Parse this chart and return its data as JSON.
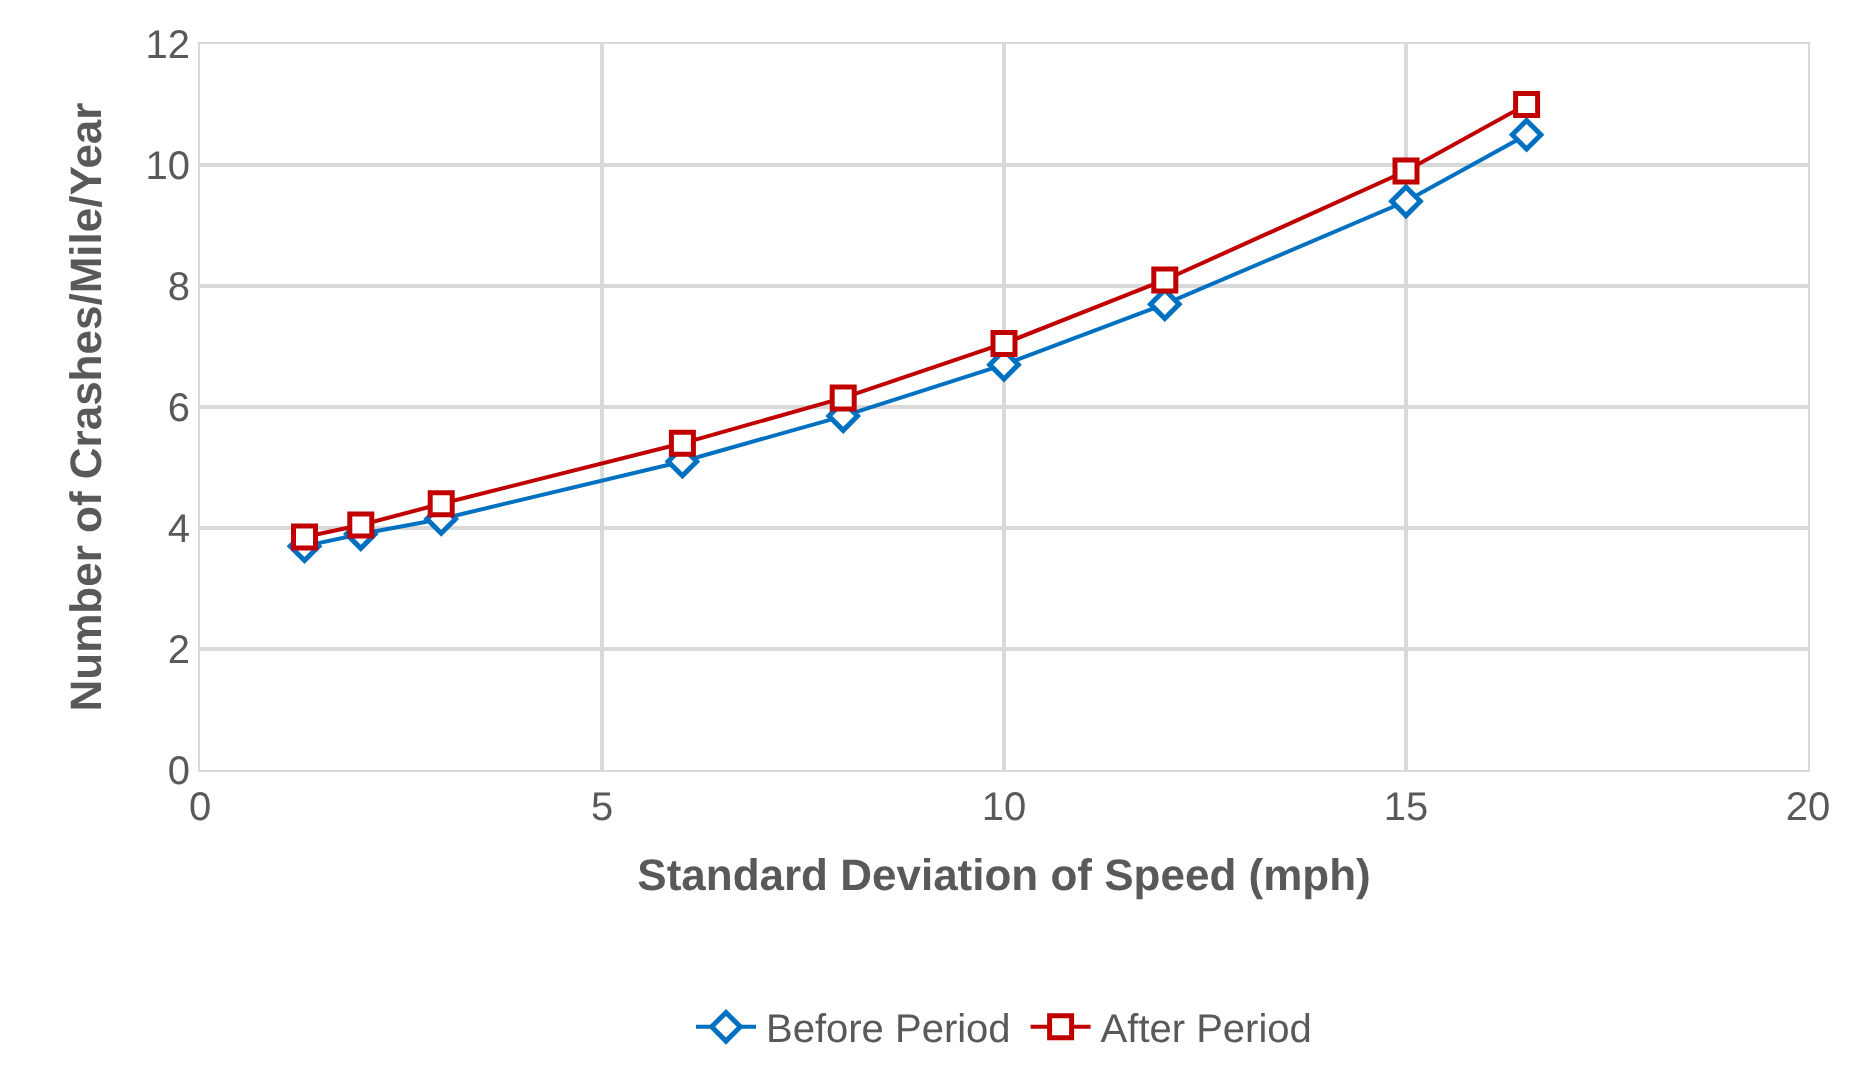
{
  "chart_data": {
    "type": "line",
    "xlabel": "Standard Deviation of Speed (mph)",
    "ylabel": "Number of Crashes/Mile/Year",
    "x": [
      1.3,
      2,
      3,
      6,
      8,
      10,
      12,
      15,
      16.5
    ],
    "series": [
      {
        "name": "Before Period",
        "color": "#0070c0",
        "marker": "diamond",
        "values": [
          3.7,
          3.9,
          4.15,
          5.1,
          5.85,
          6.7,
          7.7,
          9.4,
          10.5
        ]
      },
      {
        "name": "After Period",
        "color": "#c00000",
        "marker": "square",
        "values": [
          3.85,
          4.05,
          4.4,
          5.4,
          6.15,
          7.05,
          8.1,
          9.9,
          11.0
        ]
      }
    ],
    "xlim": [
      0,
      20
    ],
    "xticks": [
      0,
      5,
      10,
      15,
      20
    ],
    "ylim": [
      0,
      12
    ],
    "yticks": [
      0,
      2,
      4,
      6,
      8,
      10,
      12
    ],
    "grid": true,
    "legend": "bottom",
    "line_style": "solid"
  }
}
